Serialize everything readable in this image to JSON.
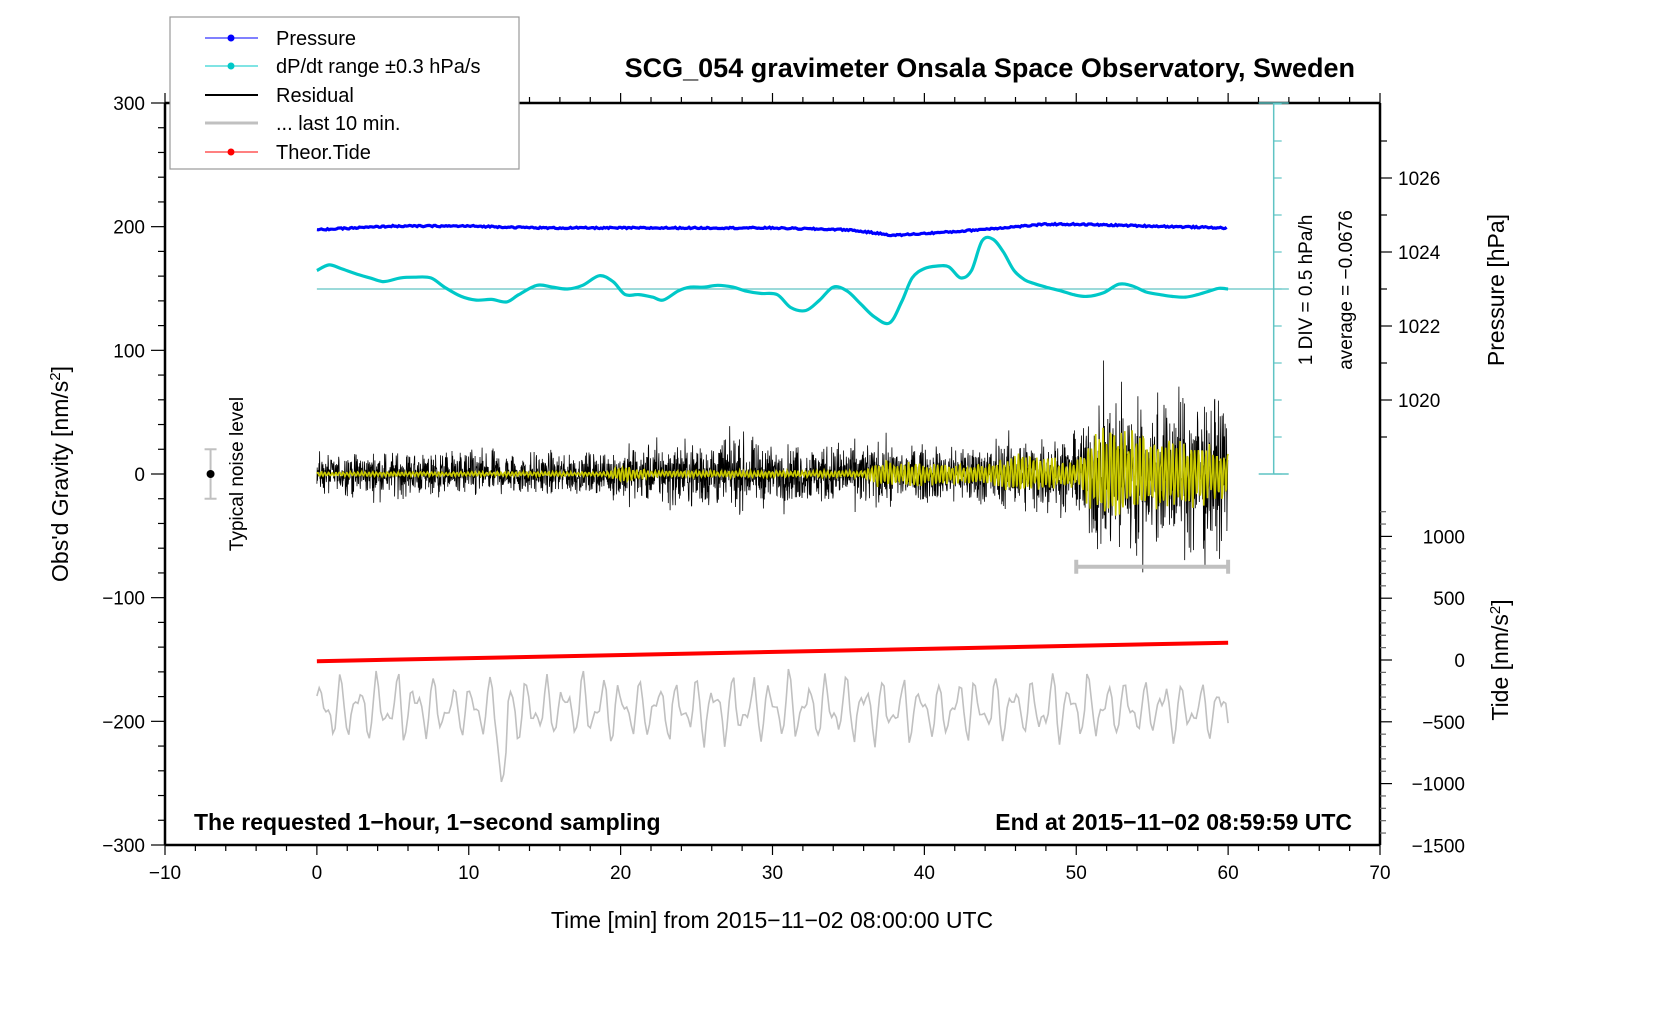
{
  "chart_data": {
    "type": "line",
    "title": "SCG_054 gravimeter Onsala Space Observatory, Sweden",
    "xlabel": "Time [min] from 2015−11−02 08:00:00 UTC",
    "ylabel_left": "Obs'd Gravity [nm/s²]",
    "ylabel_right_pressure": "Pressure [hPa]",
    "ylabel_right_tide": "Tide [nm/s²]",
    "xlim": [
      -10,
      70
    ],
    "ylim_left": [
      -300,
      300
    ],
    "x_ticks": [
      "−10",
      "0",
      "10",
      "20",
      "30",
      "40",
      "50",
      "60",
      "70"
    ],
    "x_tick_values": [
      -10,
      0,
      10,
      20,
      30,
      40,
      50,
      60,
      70
    ],
    "y_left_ticks": [
      "300",
      "200",
      "100",
      "0",
      "−100",
      "−200",
      "−300"
    ],
    "y_left_tick_values": [
      300,
      200,
      100,
      0,
      -100,
      -200,
      -300
    ],
    "pressure_ticks": [
      "1026",
      "1024",
      "1022",
      "1020"
    ],
    "pressure_tick_values": [
      1026,
      1024,
      1022,
      1020
    ],
    "tide_ticks": [
      "1000",
      "500",
      "0",
      "−500",
      "−1000",
      "−1500"
    ],
    "tide_tick_values": [
      1000,
      500,
      0,
      -500,
      -1000,
      -1500
    ],
    "legend": {
      "placement": "top-left",
      "entries": [
        {
          "label": "Pressure",
          "color": "#0000ff",
          "marker": "dot"
        },
        {
          "label": "dP/dt range ±0.3 hPa/s",
          "color": "#00c8c8",
          "marker": "dot"
        },
        {
          "label": "Residual",
          "color": "#000000",
          "marker": "line"
        },
        {
          "label": "... last 10 min.",
          "color": "#c0c0c0",
          "marker": "line"
        },
        {
          "label": "Theor.Tide",
          "color": "#ff0000",
          "marker": "dot"
        }
      ]
    },
    "annotations": {
      "bottom_left": "The requested 1−hour, 1−second sampling",
      "bottom_right": "End at 2015−11−02 08:59:59 UTC",
      "noise_label": "Typical noise level",
      "noise_range": [
        -20,
        20
      ],
      "noise_x": -7,
      "dpdt_div": "1 DIV = 0.5 hPa/h",
      "dpdt_average": "average = −0.0676",
      "last10_range": [
        50,
        60
      ]
    },
    "series": [
      {
        "name": "Pressure",
        "unit": "hPa",
        "color": "#0000ff",
        "x": [
          0,
          5,
          10,
          15,
          20,
          25,
          30,
          35,
          38,
          40,
          42,
          45,
          48,
          50,
          55,
          60
        ],
        "values": [
          1024.6,
          1024.7,
          1024.7,
          1024.65,
          1024.65,
          1024.65,
          1024.65,
          1024.6,
          1024.45,
          1024.5,
          1024.55,
          1024.65,
          1024.75,
          1024.75,
          1024.7,
          1024.65
        ]
      },
      {
        "name": "dP/dt",
        "unit": "relative DIV",
        "color": "#00c8c8",
        "x": [
          0,
          0.8,
          1.6,
          2.8,
          3.5,
          4.4,
          5.5,
          6.4,
          7.5,
          8.4,
          9.5,
          10.5,
          11.5,
          12.5,
          13.3,
          14.5,
          15.5,
          16.5,
          17.5,
          18.6,
          19.5,
          20.3,
          21.2,
          22.1,
          22.8,
          23.8,
          24.6,
          25.5,
          26.4,
          27.4,
          28.2,
          29.2,
          30.3,
          31.2,
          32.2,
          33.1,
          34.0,
          34.9,
          35.8,
          36.7,
          37.7,
          38.5,
          39.2,
          40.0,
          40.8,
          41.6,
          42.4,
          43.1,
          43.8,
          44.5,
          45.2,
          45.9,
          46.6,
          47.2,
          48.0,
          49.0,
          49.8,
          50.7,
          51.8,
          52.8,
          53.7,
          54.6,
          55.5,
          56.3,
          57.2,
          58.0,
          58.8,
          59.4,
          60.0
        ],
        "values": [
          0.5,
          0.65,
          0.55,
          0.38,
          0.3,
          0.2,
          0.3,
          0.32,
          0.3,
          0.05,
          -0.2,
          -0.3,
          -0.28,
          -0.35,
          -0.15,
          0.1,
          0.05,
          0.0,
          0.1,
          0.36,
          0.2,
          -0.15,
          -0.15,
          -0.22,
          -0.3,
          -0.05,
          0.05,
          0.05,
          0.1,
          0.05,
          -0.05,
          -0.12,
          -0.15,
          -0.5,
          -0.58,
          -0.3,
          0.05,
          -0.05,
          -0.4,
          -0.75,
          -0.92,
          -0.35,
          0.3,
          0.55,
          0.62,
          0.6,
          0.3,
          0.5,
          1.3,
          1.35,
          1.0,
          0.5,
          0.25,
          0.15,
          0.05,
          -0.05,
          -0.15,
          -0.2,
          -0.1,
          0.13,
          0.08,
          -0.08,
          -0.15,
          -0.2,
          -0.22,
          -0.15,
          -0.05,
          0.02,
          0.0
        ]
      },
      {
        "name": "Residual",
        "unit": "nm/s²",
        "color": "#000000",
        "x_range": [
          0,
          60
        ],
        "envelope": {
          "x": [
            0,
            10,
            19,
            20,
            27,
            30,
            36,
            40,
            45,
            50,
            51,
            52,
            53,
            56,
            58,
            60
          ],
          "amplitude": [
            18,
            20,
            18,
            25,
            32,
            25,
            28,
            24,
            30,
            35,
            60,
            80,
            70,
            65,
            80,
            55
          ]
        }
      },
      {
        "name": "Residual filtered",
        "unit": "nm/s²",
        "color": "#c8c800",
        "x_range": [
          0,
          60
        ],
        "envelope": {
          "x": [
            0,
            19,
            20,
            22,
            36,
            37,
            44,
            46,
            50,
            51,
            52,
            55,
            58,
            60
          ],
          "amplitude": [
            2,
            2,
            8,
            3,
            3,
            12,
            8,
            18,
            12,
            30,
            45,
            32,
            28,
            20
          ]
        }
      },
      {
        "name": "... last 10 min.",
        "unit": "nm/s² (offset)",
        "color": "#c0c0c0",
        "x_range": [
          0,
          60
        ],
        "baseline": -190,
        "amplitude": 25,
        "peak_min": -255,
        "peak_x": 12.2
      },
      {
        "name": "Theor.Tide",
        "unit": "nm/s²",
        "color": "#ff0000",
        "x": [
          0,
          60
        ],
        "values": [
          -10,
          140
        ]
      }
    ]
  }
}
